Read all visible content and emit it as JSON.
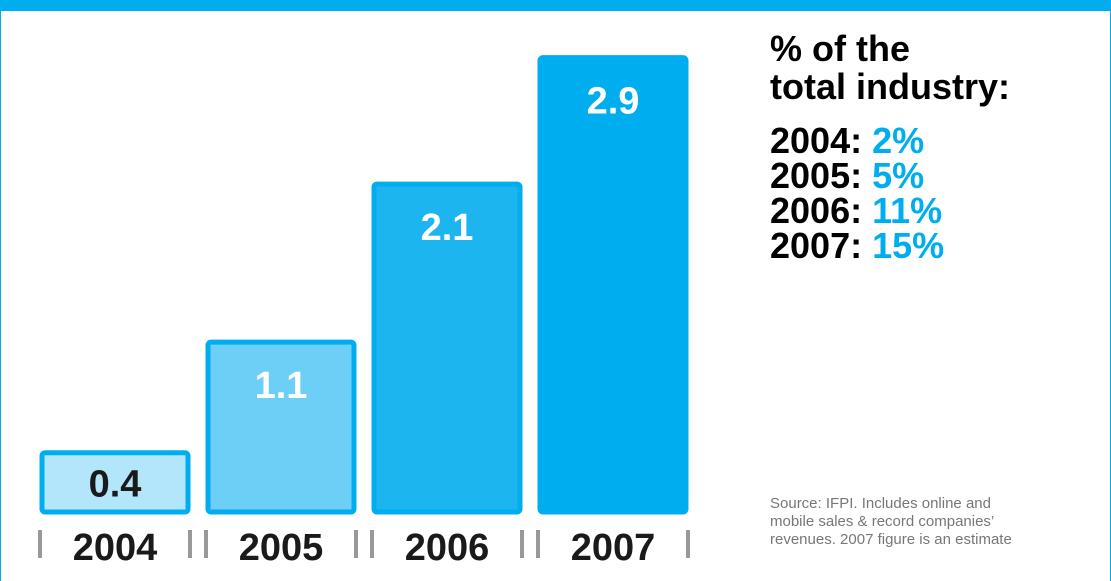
{
  "chart_data": {
    "type": "bar",
    "categories": [
      "2004",
      "2005",
      "2006",
      "2007"
    ],
    "values": [
      0.4,
      1.1,
      2.1,
      2.9
    ],
    "value_labels": [
      "0.4",
      "1.1",
      "2.1",
      "2.9"
    ],
    "title": "",
    "xlabel": "",
    "ylabel": "",
    "ylim": [
      0,
      3.1
    ],
    "grid": false,
    "legend": "none",
    "bar_styles": [
      {
        "fill": "#b3e5fb",
        "stroke": "#00aeef",
        "label_color": "#1a1a1a"
      },
      {
        "fill": "#6dcff6",
        "stroke": "#00aeef",
        "label_color": "#ffffff"
      },
      {
        "fill": "#1cb5ef",
        "stroke": "#00aeef",
        "label_color": "#ffffff"
      },
      {
        "fill": "#00aeef",
        "stroke": "#00aeef",
        "label_color": "#ffffff"
      }
    ]
  },
  "colors": {
    "accent": "#00aeef",
    "text": "#000000",
    "source_text": "#777777"
  },
  "sidebar": {
    "title_line1": "% of the",
    "title_line2": "total industry:",
    "rows": [
      {
        "year": "2004:",
        "pct": "2%"
      },
      {
        "year": "2005:",
        "pct": "5%"
      },
      {
        "year": "2006:",
        "pct": "11%"
      },
      {
        "year": "2007:",
        "pct": "15%"
      }
    ]
  },
  "source": {
    "line1": "Source: IFPI. Includes online and",
    "line2": "mobile sales & record companies’",
    "line3": "revenues. 2007 figure is an estimate"
  }
}
